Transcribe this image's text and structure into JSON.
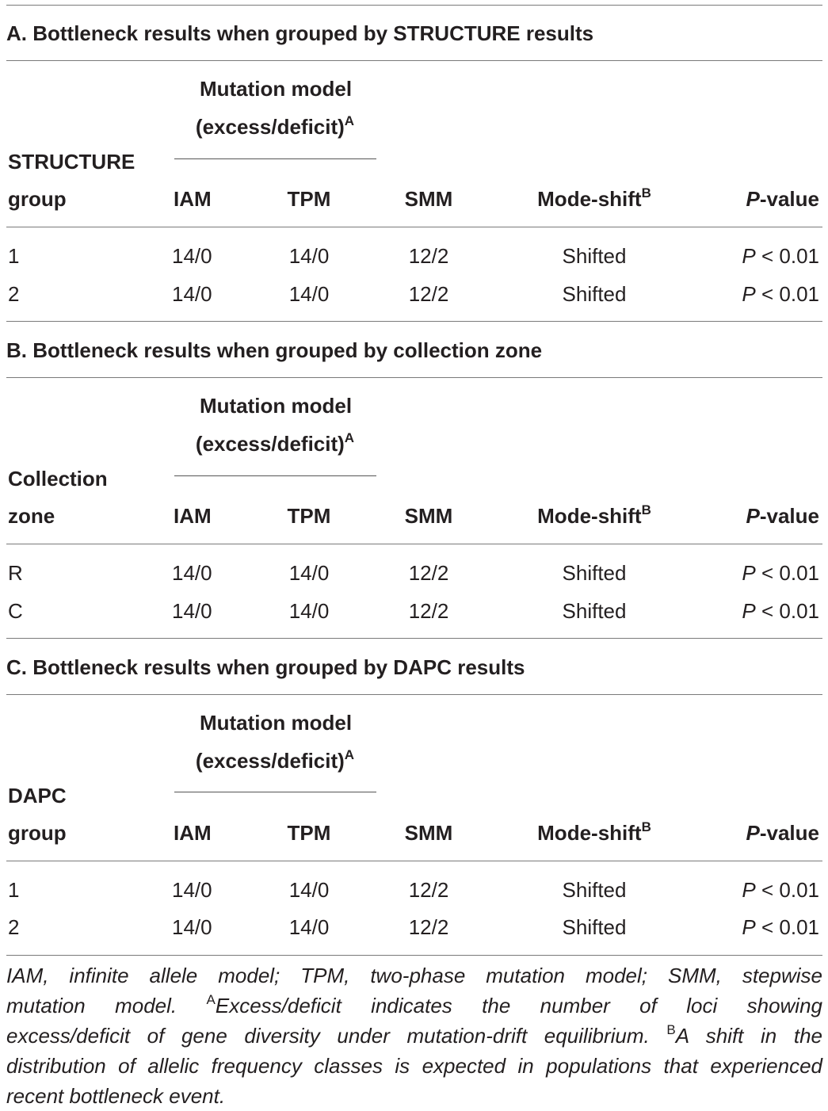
{
  "sections": [
    {
      "title": "A. Bottleneck results when grouped by STRUCTURE results",
      "group_header_line1": "STRUCTURE",
      "group_header_line2": "group",
      "rows": [
        {
          "group": "1",
          "iam": "14/0",
          "tpm": "14/0",
          "smm": "12/2",
          "mode_shift": "Shifted",
          "p_italic": "P",
          "p_rest": " < 0.01"
        },
        {
          "group": "2",
          "iam": "14/0",
          "tpm": "14/0",
          "smm": "12/2",
          "mode_shift": "Shifted",
          "p_italic": "P",
          "p_rest": " < 0.01"
        }
      ]
    },
    {
      "title": "B. Bottleneck results when grouped by collection zone",
      "group_header_line1": "Collection",
      "group_header_line2": "zone",
      "rows": [
        {
          "group": "R",
          "iam": "14/0",
          "tpm": "14/0",
          "smm": "12/2",
          "mode_shift": "Shifted",
          "p_italic": "P",
          "p_rest": " < 0.01"
        },
        {
          "group": "C",
          "iam": "14/0",
          "tpm": "14/0",
          "smm": "12/2",
          "mode_shift": "Shifted",
          "p_italic": "P",
          "p_rest": " < 0.01"
        }
      ]
    },
    {
      "title": "C. Bottleneck results when grouped by DAPC results",
      "group_header_line1": "DAPC",
      "group_header_line2": "group",
      "rows": [
        {
          "group": "1",
          "iam": "14/0",
          "tpm": "14/0",
          "smm": "12/2",
          "mode_shift": "Shifted",
          "p_italic": "P",
          "p_rest": " < 0.01"
        },
        {
          "group": "2",
          "iam": "14/0",
          "tpm": "14/0",
          "smm": "12/2",
          "mode_shift": "Shifted",
          "p_italic": "P",
          "p_rest": " < 0.01"
        }
      ]
    }
  ],
  "headers": {
    "mutation_model": "Mutation model",
    "excess_deficit": "(excess/deficit)",
    "excess_deficit_sup": "A",
    "iam": "IAM",
    "tpm": "TPM",
    "smm": "SMM",
    "mode_shift": "Mode-shift",
    "mode_shift_sup": "B",
    "p_value_italic": "P",
    "p_value_rest": "-value"
  },
  "footnote": {
    "line1": "IAM, infinite allele model; TPM, two-phase mutation model; SMM, stepwise",
    "line2_a": "mutation model.",
    "line2_sup": "A",
    "line2_b": "Excess/deficit indicates the number of loci showing",
    "line3_a": "excess/deficit of gene diversity under mutation-drift equilibrium.",
    "line3_sup": "B",
    "line3_b": "A shift in the",
    "line4": "distribution of allelic frequency classes is expected in populations that experienced",
    "line5": "recent bottleneck event."
  }
}
